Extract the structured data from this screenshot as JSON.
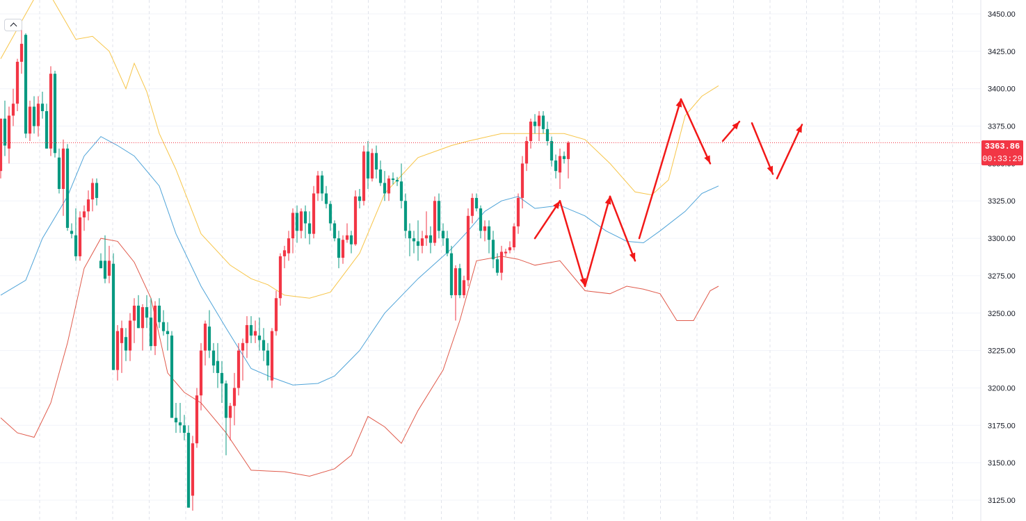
{
  "colors": {
    "up": "#f23645",
    "down": "#089981",
    "upper_band": "#f7c548",
    "middle_band": "#4ea3d8",
    "lower_band": "#e05a4b",
    "annotation": "#f21818",
    "grid": "#f0f3fa",
    "grid_vertical": "#e0e3eb",
    "axis_text": "#131722"
  },
  "icons": {
    "collapse": "chevron-up-icon"
  },
  "price_axis": {
    "last_price": "3363.86",
    "countdown": "00:33:29"
  },
  "chart_data": {
    "type": "candlestick",
    "title": "",
    "xlabel": "",
    "ylabel": "",
    "ylim": [
      3115,
      3463
    ],
    "yticks": [
      "3125.00",
      "3150.00",
      "3175.00",
      "3200.00",
      "3225.00",
      "3250.00",
      "3275.00",
      "3300.00",
      "3325.00",
      "3350.00",
      "3375.00",
      "3400.00",
      "3425.00",
      "3450.00"
    ],
    "grid": true,
    "candles": [
      [
        3345,
        3380,
        3340,
        3380
      ],
      [
        3380,
        3392,
        3355,
        3362
      ],
      [
        3360,
        3388,
        3350,
        3382
      ],
      [
        3382,
        3400,
        3375,
        3390
      ],
      [
        3390,
        3420,
        3385,
        3418
      ],
      [
        3418,
        3440,
        3410,
        3430
      ],
      [
        3436,
        3437,
        3367,
        3370
      ],
      [
        3370,
        3392,
        3365,
        3388
      ],
      [
        3388,
        3395,
        3370,
        3375
      ],
      [
        3375,
        3395,
        3368,
        3390
      ],
      [
        3390,
        3398,
        3380,
        3385
      ],
      [
        3385,
        3390,
        3360,
        3360
      ],
      [
        3360,
        3415,
        3355,
        3410
      ],
      [
        3410,
        3412,
        3354,
        3357
      ],
      [
        3354,
        3360,
        3330,
        3333
      ],
      [
        3333,
        3366,
        3315,
        3360
      ],
      [
        3360,
        3363,
        3305,
        3307
      ],
      [
        3305,
        3310,
        3300,
        3303
      ],
      [
        3302,
        3320,
        3285,
        3288
      ],
      [
        3288,
        3318,
        3285,
        3314
      ],
      [
        3314,
        3322,
        3305,
        3318
      ],
      [
        3318,
        3332,
        3312,
        3326
      ],
      [
        3326,
        3340,
        3318,
        3337
      ],
      [
        3337,
        3340,
        3322,
        3327
      ],
      [
        3285,
        3290,
        3280,
        3280
      ],
      [
        3285,
        3302,
        3270,
        3273
      ],
      [
        3275,
        3295,
        3270,
        3285
      ],
      [
        3283,
        3290,
        3212,
        3212
      ],
      [
        3212,
        3242,
        3205,
        3238
      ],
      [
        3230,
        3245,
        3210,
        3240
      ],
      [
        3234,
        3240,
        3218,
        3225
      ],
      [
        3225,
        3250,
        3218,
        3245
      ],
      [
        3245,
        3260,
        3230,
        3255
      ],
      [
        3255,
        3262,
        3240,
        3240
      ],
      [
        3240,
        3256,
        3225,
        3254
      ],
      [
        3254,
        3262,
        3240,
        3247
      ],
      [
        3247,
        3260,
        3225,
        3228
      ],
      [
        3228,
        3258,
        3222,
        3255
      ],
      [
        3255,
        3260,
        3240,
        3244
      ],
      [
        3244,
        3252,
        3235,
        3238
      ],
      [
        3238,
        3244,
        3225,
        3236
      ],
      [
        3235,
        3238,
        3180,
        3180
      ],
      [
        3180,
        3190,
        3170,
        3177
      ],
      [
        3177,
        3190,
        3170,
        3175
      ],
      [
        3175,
        3182,
        3165,
        3170
      ],
      [
        3170,
        3175,
        3120,
        3120
      ],
      [
        3128,
        3168,
        3118,
        3163
      ],
      [
        3163,
        3200,
        3160,
        3195
      ],
      [
        3195,
        3230,
        3185,
        3225
      ],
      [
        3225,
        3245,
        3215,
        3243
      ],
      [
        3241,
        3252,
        3220,
        3225
      ],
      [
        3225,
        3230,
        3210,
        3215
      ],
      [
        3218,
        3230,
        3200,
        3210
      ],
      [
        3210,
        3218,
        3190,
        3203
      ],
      [
        3203,
        3205,
        3155,
        3180
      ],
      [
        3180,
        3190,
        3165,
        3188
      ],
      [
        3188,
        3210,
        3175,
        3200
      ],
      [
        3200,
        3230,
        3195,
        3225
      ],
      [
        3225,
        3233,
        3205,
        3230
      ],
      [
        3230,
        3248,
        3220,
        3242
      ],
      [
        3242,
        3248,
        3230,
        3235
      ],
      [
        3235,
        3245,
        3230,
        3238
      ],
      [
        3235,
        3247,
        3225,
        3232
      ],
      [
        3232,
        3240,
        3218,
        3225
      ],
      [
        3225,
        3230,
        3205,
        3215
      ],
      [
        3205,
        3240,
        3200,
        3238
      ],
      [
        3238,
        3265,
        3235,
        3260
      ],
      [
        3260,
        3290,
        3255,
        3288
      ],
      [
        3288,
        3295,
        3280,
        3292
      ],
      [
        3290,
        3305,
        3285,
        3300
      ],
      [
        3300,
        3320,
        3290,
        3317
      ],
      [
        3317,
        3322,
        3297,
        3305
      ],
      [
        3305,
        3320,
        3300,
        3318
      ],
      [
        3318,
        3322,
        3300,
        3310
      ],
      [
        3310,
        3318,
        3296,
        3303
      ],
      [
        3303,
        3335,
        3300,
        3330
      ],
      [
        3330,
        3345,
        3325,
        3342
      ],
      [
        3342,
        3345,
        3325,
        3330
      ],
      [
        3330,
        3335,
        3320,
        3323
      ],
      [
        3323,
        3325,
        3305,
        3310
      ],
      [
        3310,
        3312,
        3298,
        3300
      ],
      [
        3300,
        3305,
        3280,
        3287
      ],
      [
        3287,
        3302,
        3283,
        3299
      ],
      [
        3299,
        3310,
        3297,
        3302
      ],
      [
        3302,
        3305,
        3290,
        3296
      ],
      [
        3296,
        3332,
        3295,
        3328
      ],
      [
        3328,
        3333,
        3320,
        3325
      ],
      [
        3325,
        3362,
        3322,
        3358
      ],
      [
        3358,
        3365,
        3333,
        3340
      ],
      [
        3340,
        3360,
        3338,
        3357
      ],
      [
        3357,
        3362,
        3340,
        3346
      ],
      [
        3346,
        3352,
        3335,
        3337
      ],
      [
        3337,
        3345,
        3325,
        3330
      ],
      [
        3330,
        3342,
        3325,
        3340
      ],
      [
        3340,
        3344,
        3336,
        3339
      ],
      [
        3339,
        3341,
        3335,
        3338
      ],
      [
        3338,
        3350,
        3320,
        3325
      ],
      [
        3325,
        3330,
        3300,
        3305
      ],
      [
        3305,
        3310,
        3288,
        3300
      ],
      [
        3300,
        3305,
        3290,
        3298
      ],
      [
        3298,
        3312,
        3285,
        3295
      ],
      [
        3295,
        3305,
        3290,
        3300
      ],
      [
        3300,
        3318,
        3295,
        3302
      ],
      [
        3302,
        3308,
        3290,
        3297
      ],
      [
        3297,
        3328,
        3295,
        3325
      ],
      [
        3325,
        3330,
        3300,
        3305
      ],
      [
        3305,
        3310,
        3295,
        3300
      ],
      [
        3300,
        3305,
        3288,
        3290
      ],
      [
        3290,
        3295,
        3260,
        3262
      ],
      [
        3262,
        3282,
        3245,
        3280
      ],
      [
        3280,
        3283,
        3260,
        3262
      ],
      [
        3262,
        3275,
        3260,
        3272
      ],
      [
        3272,
        3320,
        3268,
        3315
      ],
      [
        3315,
        3330,
        3310,
        3327
      ],
      [
        3327,
        3330,
        3318,
        3320
      ],
      [
        3320,
        3322,
        3300,
        3305
      ],
      [
        3305,
        3312,
        3298,
        3308
      ],
      [
        3308,
        3312,
        3290,
        3299
      ],
      [
        3299,
        3305,
        3280,
        3286
      ],
      [
        3286,
        3290,
        3275,
        3277
      ],
      [
        3277,
        3295,
        3272,
        3291
      ],
      [
        3290,
        3293,
        3288,
        3291
      ],
      [
        3292,
        3298,
        3290,
        3294
      ],
      [
        3294,
        3310,
        3292,
        3308
      ],
      [
        3308,
        3330,
        3303,
        3327
      ],
      [
        3327,
        3355,
        3320,
        3350
      ],
      [
        3350,
        3368,
        3345,
        3365
      ],
      [
        3365,
        3380,
        3360,
        3378
      ],
      [
        3378,
        3383,
        3370,
        3375
      ],
      [
        3375,
        3385,
        3365,
        3382
      ],
      [
        3382,
        3385,
        3370,
        3373
      ],
      [
        3373,
        3378,
        3362,
        3365
      ],
      [
        3365,
        3368,
        3348,
        3352
      ],
      [
        3352,
        3356,
        3340,
        3345
      ],
      [
        3344,
        3360,
        3333,
        3355
      ],
      [
        3355,
        3358,
        3350,
        3353
      ],
      [
        3353,
        3365,
        3340,
        3364
      ]
    ],
    "bands": {
      "upper": [
        [
          0,
          3420
        ],
        [
          8,
          3460
        ],
        [
          12,
          3462
        ],
        [
          18,
          3433
        ],
        [
          22,
          3435
        ],
        [
          26,
          3425
        ],
        [
          30,
          3400
        ],
        [
          32,
          3417
        ],
        [
          35,
          3398
        ],
        [
          38,
          3370
        ],
        [
          42,
          3346
        ],
        [
          48,
          3303
        ],
        [
          55,
          3282
        ],
        [
          60,
          3273
        ],
        [
          64,
          3269
        ],
        [
          68,
          3262
        ],
        [
          74,
          3260
        ],
        [
          79,
          3264
        ],
        [
          86,
          3290
        ],
        [
          92,
          3330
        ],
        [
          100,
          3354
        ],
        [
          108,
          3362
        ],
        [
          112,
          3365
        ],
        [
          120,
          3370
        ],
        [
          128,
          3370
        ],
        [
          135,
          3370
        ],
        [
          140,
          3366
        ],
        [
          146,
          3350
        ],
        [
          152,
          3331
        ],
        [
          156,
          3329
        ],
        [
          160,
          3339
        ],
        [
          164,
          3382
        ],
        [
          168,
          3395
        ],
        [
          172,
          3402
        ]
      ],
      "middle": [
        [
          0,
          3262
        ],
        [
          6,
          3272
        ],
        [
          10,
          3300
        ],
        [
          16,
          3328
        ],
        [
          20,
          3355
        ],
        [
          24,
          3368
        ],
        [
          28,
          3362
        ],
        [
          32,
          3355
        ],
        [
          38,
          3335
        ],
        [
          42,
          3303
        ],
        [
          48,
          3268
        ],
        [
          54,
          3240
        ],
        [
          60,
          3213
        ],
        [
          65,
          3207
        ],
        [
          70,
          3202
        ],
        [
          76,
          3203
        ],
        [
          80,
          3208
        ],
        [
          86,
          3225
        ],
        [
          92,
          3250
        ],
        [
          100,
          3273
        ],
        [
          108,
          3293
        ],
        [
          112,
          3305
        ],
        [
          116,
          3318
        ],
        [
          120,
          3325
        ],
        [
          124,
          3328
        ],
        [
          128,
          3320
        ],
        [
          134,
          3322
        ],
        [
          140,
          3315
        ],
        [
          145,
          3305
        ],
        [
          150,
          3298
        ],
        [
          154,
          3297
        ],
        [
          158,
          3305
        ],
        [
          164,
          3318
        ],
        [
          168,
          3330
        ],
        [
          172,
          3335
        ]
      ],
      "lower": [
        [
          0,
          3180
        ],
        [
          4,
          3170
        ],
        [
          8,
          3167
        ],
        [
          12,
          3190
        ],
        [
          16,
          3230
        ],
        [
          20,
          3280
        ],
        [
          24,
          3300
        ],
        [
          28,
          3298
        ],
        [
          32,
          3284
        ],
        [
          36,
          3260
        ],
        [
          40,
          3210
        ],
        [
          44,
          3197
        ],
        [
          48,
          3190
        ],
        [
          54,
          3170
        ],
        [
          60,
          3145
        ],
        [
          68,
          3144
        ],
        [
          74,
          3141
        ],
        [
          80,
          3146
        ],
        [
          84,
          3155
        ],
        [
          88,
          3181
        ],
        [
          92,
          3174
        ],
        [
          96,
          3163
        ],
        [
          100,
          3185
        ],
        [
          106,
          3212
        ],
        [
          110,
          3245
        ],
        [
          114,
          3285
        ],
        [
          120,
          3288
        ],
        [
          124,
          3286
        ],
        [
          128,
          3282
        ],
        [
          134,
          3285
        ],
        [
          140,
          3265
        ],
        [
          146,
          3263
        ],
        [
          150,
          3268
        ],
        [
          154,
          3266
        ],
        [
          158,
          3263
        ],
        [
          162,
          3245
        ],
        [
          166,
          3245
        ],
        [
          170,
          3265
        ],
        [
          172,
          3268
        ]
      ]
    },
    "annotations": [
      [
        [
          128,
          3300
        ],
        [
          134,
          3325
        ]
      ],
      [
        [
          134,
          3325
        ],
        [
          140,
          3268
        ]
      ],
      [
        [
          140,
          3268
        ],
        [
          146,
          3328
        ]
      ],
      [
        [
          146,
          3328
        ],
        [
          152,
          3285
        ]
      ],
      [
        [
          153,
          3300
        ],
        [
          163,
          3393
        ]
      ],
      [
        [
          163,
          3393
        ],
        [
          170,
          3350
        ]
      ],
      [
        [
          173,
          3365
        ],
        [
          177,
          3378
        ]
      ],
      [
        [
          180,
          3377
        ],
        [
          185,
          3343
        ]
      ],
      [
        [
          186,
          3340
        ],
        [
          192,
          3376
        ]
      ]
    ]
  }
}
